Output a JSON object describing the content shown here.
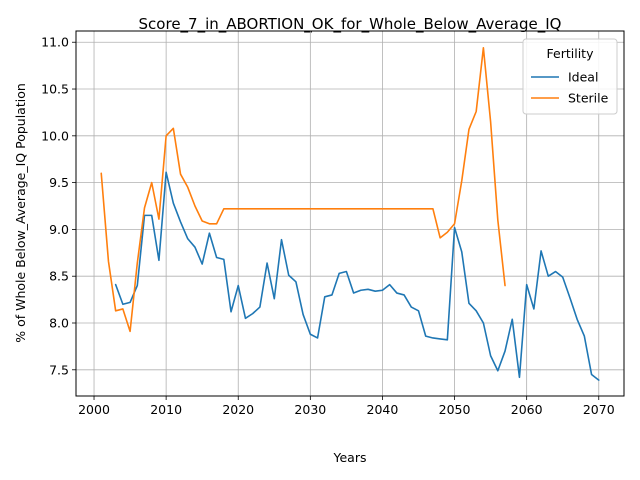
{
  "chart_data": {
    "type": "line",
    "title": "Score_7_in_ABORTION_OK_for_Whole_Below_Average_IQ",
    "xlabel": "Years",
    "ylabel": "% of Whole Below_Average_IQ Population",
    "xlim": [
      1997.5,
      2073.5
    ],
    "ylim": [
      7.22,
      11.12
    ],
    "xticks": [
      2000,
      2010,
      2020,
      2030,
      2040,
      2050,
      2060,
      2070
    ],
    "yticks": [
      7.5,
      8.0,
      8.5,
      9.0,
      9.5,
      10.0,
      10.5,
      11.0
    ],
    "xtick_labels": [
      "2000",
      "2010",
      "2020",
      "2030",
      "2040",
      "2050",
      "2060",
      "2070"
    ],
    "ytick_labels": [
      "7.5",
      "8.0",
      "8.5",
      "9.0",
      "9.5",
      "10.0",
      "10.5",
      "11.0"
    ],
    "grid": true,
    "legend": {
      "title": "Fertility",
      "position": "top-right"
    },
    "series": [
      {
        "name": "Ideal",
        "color": "#1f77b4",
        "x": [
          2003,
          2004,
          2005,
          2006,
          2007,
          2008,
          2009,
          2010,
          2011,
          2012,
          2013,
          2014,
          2015,
          2016,
          2017,
          2018,
          2019,
          2020,
          2021,
          2022,
          2023,
          2024,
          2025,
          2026,
          2027,
          2028,
          2029,
          2030,
          2031,
          2032,
          2033,
          2034,
          2035,
          2036,
          2037,
          2038,
          2039,
          2040,
          2041,
          2042,
          2043,
          2044,
          2045,
          2046,
          2047,
          2048,
          2049,
          2050,
          2051,
          2052,
          2053,
          2054,
          2055,
          2056,
          2057,
          2058,
          2059,
          2060,
          2061,
          2062,
          2063,
          2064,
          2065,
          2066,
          2067,
          2068,
          2069,
          2070
        ],
        "y": [
          8.41,
          8.2,
          8.22,
          8.4,
          9.15,
          9.15,
          8.67,
          9.61,
          9.28,
          9.08,
          8.9,
          8.81,
          8.63,
          8.96,
          8.7,
          8.68,
          8.12,
          8.4,
          8.05,
          8.1,
          8.17,
          8.64,
          8.26,
          8.89,
          8.51,
          8.44,
          8.09,
          7.88,
          7.84,
          8.28,
          8.3,
          8.53,
          8.55,
          8.32,
          8.35,
          8.36,
          8.34,
          8.35,
          8.41,
          8.32,
          8.3,
          8.17,
          8.13,
          7.86,
          7.84,
          7.83,
          7.82,
          9.02,
          8.76,
          8.21,
          8.13,
          8.0,
          7.65,
          7.49,
          7.7,
          8.04,
          7.42,
          8.41,
          8.15,
          8.77,
          8.5,
          8.55,
          8.49,
          8.27,
          8.04,
          7.86,
          7.45,
          7.39
        ]
      },
      {
        "name": "Sterile",
        "color": "#ff7f0e",
        "x": [
          2001,
          2002,
          2003,
          2004,
          2005,
          2006,
          2007,
          2008,
          2009,
          2010,
          2011,
          2012,
          2013,
          2014,
          2015,
          2016,
          2017,
          2018,
          2019,
          2020,
          2021,
          2022,
          2023,
          2024,
          2025,
          2026,
          2027,
          2028,
          2029,
          2030,
          2031,
          2032,
          2033,
          2034,
          2035,
          2036,
          2037,
          2038,
          2039,
          2040,
          2041,
          2042,
          2043,
          2044,
          2045,
          2046,
          2047,
          2048,
          2049,
          2050,
          2051,
          2052,
          2053,
          2054,
          2055,
          2056,
          2057
        ],
        "y": [
          9.6,
          8.66,
          8.13,
          8.15,
          7.91,
          8.64,
          9.23,
          9.5,
          9.11,
          10.0,
          10.08,
          9.59,
          9.45,
          9.25,
          9.09,
          9.06,
          9.06,
          9.22,
          9.22,
          9.22,
          9.22,
          9.22,
          9.22,
          9.22,
          9.22,
          9.22,
          9.22,
          9.22,
          9.22,
          9.22,
          9.22,
          9.22,
          9.22,
          9.22,
          9.22,
          9.22,
          9.22,
          9.22,
          9.22,
          9.22,
          9.22,
          9.22,
          9.22,
          9.22,
          9.22,
          9.22,
          9.22,
          8.91,
          8.97,
          9.06,
          9.52,
          10.07,
          10.26,
          10.94,
          10.15,
          9.1,
          8.4
        ]
      }
    ]
  }
}
